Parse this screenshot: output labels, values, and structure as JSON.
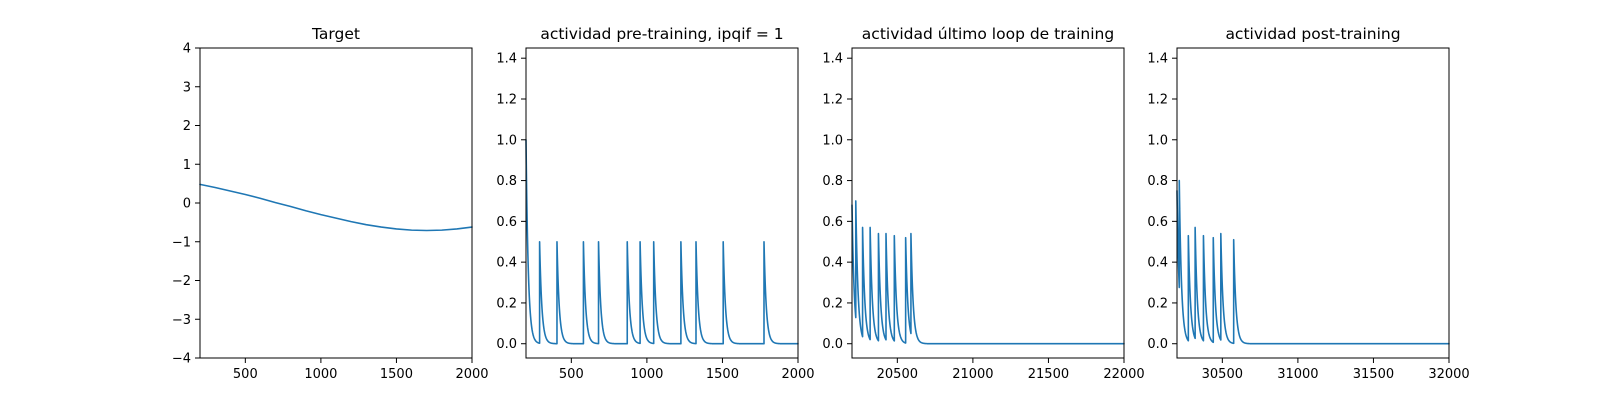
{
  "chart_data": [
    {
      "type": "line",
      "title": "Target",
      "xlim": [
        200,
        2000
      ],
      "ylim": [
        -4,
        4
      ],
      "xticks": [
        500,
        1000,
        1500,
        2000
      ],
      "yticks": [
        -4,
        -3,
        -2,
        -1,
        0,
        1,
        2,
        3,
        4
      ],
      "series": [
        {
          "color": "#1f77b4",
          "x": [
            200,
            300,
            400,
            500,
            600,
            700,
            800,
            900,
            1000,
            1100,
            1200,
            1300,
            1400,
            1500,
            1600,
            1700,
            1800,
            1900,
            2000
          ],
          "y": [
            0.48,
            0.4,
            0.31,
            0.22,
            0.12,
            0.01,
            -0.09,
            -0.2,
            -0.3,
            -0.39,
            -0.48,
            -0.56,
            -0.62,
            -0.67,
            -0.7,
            -0.71,
            -0.7,
            -0.67,
            -0.62
          ]
        }
      ]
    },
    {
      "type": "line",
      "title": "actividad pre-training, ipqif = 1",
      "xlim": [
        200,
        2000
      ],
      "ylim": [
        -0.07,
        1.45
      ],
      "xticks": [
        500,
        1000,
        1500,
        2000
      ],
      "yticks": [
        0.0,
        0.2,
        0.4,
        0.6,
        0.8,
        1.0,
        1.2,
        1.4
      ],
      "tau": 15,
      "baseline": 0.0,
      "start": {
        "x": 200,
        "y": 1.0
      },
      "spikes": [
        {
          "x": 290,
          "y": 0.5
        },
        {
          "x": 405,
          "y": 0.5
        },
        {
          "x": 580,
          "y": 0.5
        },
        {
          "x": 680,
          "y": 0.5
        },
        {
          "x": 870,
          "y": 0.5
        },
        {
          "x": 955,
          "y": 0.5
        },
        {
          "x": 1045,
          "y": 0.5
        },
        {
          "x": 1225,
          "y": 0.5
        },
        {
          "x": 1325,
          "y": 0.5
        },
        {
          "x": 1505,
          "y": 0.5
        },
        {
          "x": 1775,
          "y": 0.5
        }
      ],
      "end_x": 2000,
      "color": "#1f77b4"
    },
    {
      "type": "line",
      "title": "actividad último loop de training",
      "xlim": [
        20200,
        22000
      ],
      "ylim": [
        -0.07,
        1.45
      ],
      "xticks": [
        20500,
        21000,
        21500,
        22000
      ],
      "yticks": [
        0.0,
        0.2,
        0.4,
        0.6,
        0.8,
        1.0,
        1.2,
        1.4
      ],
      "tau": 15,
      "baseline": 0.0,
      "start": {
        "x": 20200,
        "y": 0.68
      },
      "spikes": [
        {
          "x": 20225,
          "y": 0.7
        },
        {
          "x": 20270,
          "y": 0.57
        },
        {
          "x": 20320,
          "y": 0.57
        },
        {
          "x": 20375,
          "y": 0.54
        },
        {
          "x": 20425,
          "y": 0.54
        },
        {
          "x": 20480,
          "y": 0.53
        },
        {
          "x": 20555,
          "y": 0.52
        },
        {
          "x": 20590,
          "y": 0.54
        }
      ],
      "end_x": 22000,
      "color": "#1f77b4"
    },
    {
      "type": "line",
      "title": "actividad post-training",
      "xlim": [
        30200,
        32000
      ],
      "ylim": [
        -0.07,
        1.45
      ],
      "xticks": [
        30500,
        31000,
        31500,
        32000
      ],
      "yticks": [
        0.0,
        0.2,
        0.4,
        0.6,
        0.8,
        1.0,
        1.2,
        1.4
      ],
      "tau": 15,
      "baseline": 0.0,
      "start": {
        "x": 30200,
        "y": 0.75
      },
      "spikes": [
        {
          "x": 30215,
          "y": 0.8
        },
        {
          "x": 30275,
          "y": 0.53
        },
        {
          "x": 30320,
          "y": 0.57
        },
        {
          "x": 30375,
          "y": 0.53
        },
        {
          "x": 30440,
          "y": 0.52
        },
        {
          "x": 30490,
          "y": 0.54
        },
        {
          "x": 30575,
          "y": 0.51
        }
      ],
      "end_x": 32000,
      "color": "#1f77b4"
    }
  ]
}
